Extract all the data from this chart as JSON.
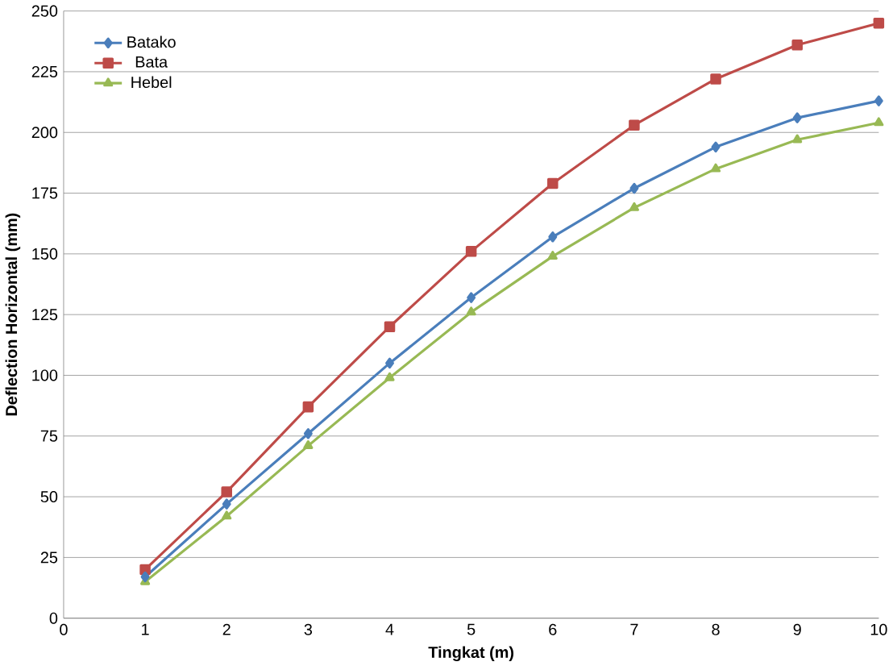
{
  "chart_data": {
    "type": "line",
    "xlabel": "Tingkat  (m)",
    "ylabel": "Deflection Horizontal (mm)",
    "xlim": [
      0,
      10
    ],
    "xticks": [
      0,
      1,
      2,
      3,
      4,
      5,
      6,
      7,
      8,
      9,
      10
    ],
    "ylim": [
      0,
      250
    ],
    "yticks": [
      0,
      25,
      50,
      75,
      100,
      125,
      150,
      175,
      200,
      225,
      250
    ],
    "grid": "y",
    "legend": "top left",
    "line_style": "solid",
    "series": [
      {
        "name": "Batako",
        "color": "#4a7ebb",
        "marker": "diamond",
        "x": [
          1,
          2,
          3,
          4,
          5,
          6,
          7,
          8,
          9,
          10
        ],
        "values": [
          17,
          47,
          76,
          105,
          132,
          157,
          177,
          194,
          206,
          213
        ]
      },
      {
        "name": "Bata",
        "color": "#be4b48",
        "marker": "square",
        "x": [
          1,
          2,
          3,
          4,
          5,
          6,
          7,
          8,
          9,
          10
        ],
        "values": [
          20,
          52,
          87,
          120,
          151,
          179,
          203,
          222,
          236,
          245
        ]
      },
      {
        "name": "Hebel",
        "color": "#98b954",
        "marker": "triangle",
        "x": [
          1,
          2,
          3,
          4,
          5,
          6,
          7,
          8,
          9,
          10
        ],
        "values": [
          15,
          42,
          71,
          99,
          126,
          149,
          169,
          185,
          197,
          204
        ]
      }
    ]
  }
}
